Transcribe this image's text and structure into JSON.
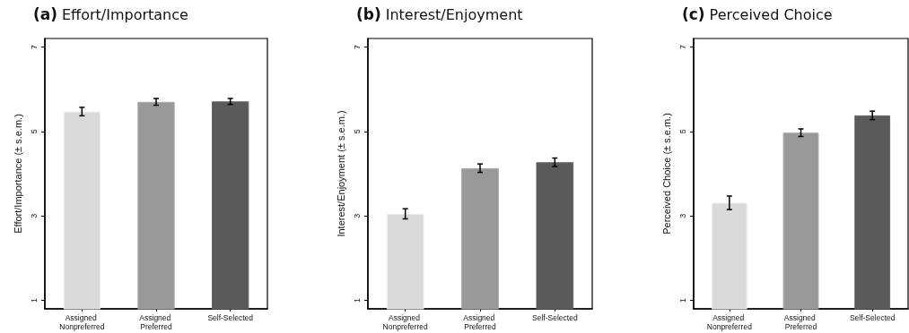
{
  "chart_data": [
    {
      "type": "bar",
      "title": "(a) Effort/Importance",
      "ylabel": "Effort/Importance (± s.e.m.)",
      "categories": [
        "Assigned Nonpreferred",
        "Assigned Preferred",
        "Self-Selected"
      ],
      "values": [
        5.47,
        5.7,
        5.71
      ],
      "errors": [
        0.1,
        0.08,
        0.07
      ],
      "colors": [
        "#d9d9d9",
        "#999999",
        "#5a5a5a"
      ],
      "ylim": [
        0.8,
        7.2
      ],
      "yticks": [
        1,
        3,
        5,
        7
      ],
      "grid": false
    },
    {
      "type": "bar",
      "title": "(b) Interest/Enjoyment",
      "ylabel": "Interest/Enjoyment (± s.e.m.)",
      "categories": [
        "Assigned Nonpreferred",
        "Assigned Preferred",
        "Self-Selected"
      ],
      "values": [
        3.05,
        4.13,
        4.27
      ],
      "errors": [
        0.12,
        0.1,
        0.1
      ],
      "colors": [
        "#d9d9d9",
        "#999999",
        "#5a5a5a"
      ],
      "ylim": [
        0.8,
        7.2
      ],
      "yticks": [
        1,
        3,
        5,
        7
      ],
      "grid": false
    },
    {
      "type": "bar",
      "title": "(c) Perceived Choice",
      "ylabel": "Perceived Choice (± s.e.m.)",
      "categories": [
        "Assigned Nonpreferred",
        "Assigned Preferred",
        "Self-Selected"
      ],
      "values": [
        3.31,
        4.97,
        5.38
      ],
      "errors": [
        0.16,
        0.09,
        0.1
      ],
      "colors": [
        "#d9d9d9",
        "#999999",
        "#5a5a5a"
      ],
      "ylim": [
        0.8,
        7.2
      ],
      "yticks": [
        1,
        3,
        5,
        7
      ],
      "grid": false
    }
  ]
}
